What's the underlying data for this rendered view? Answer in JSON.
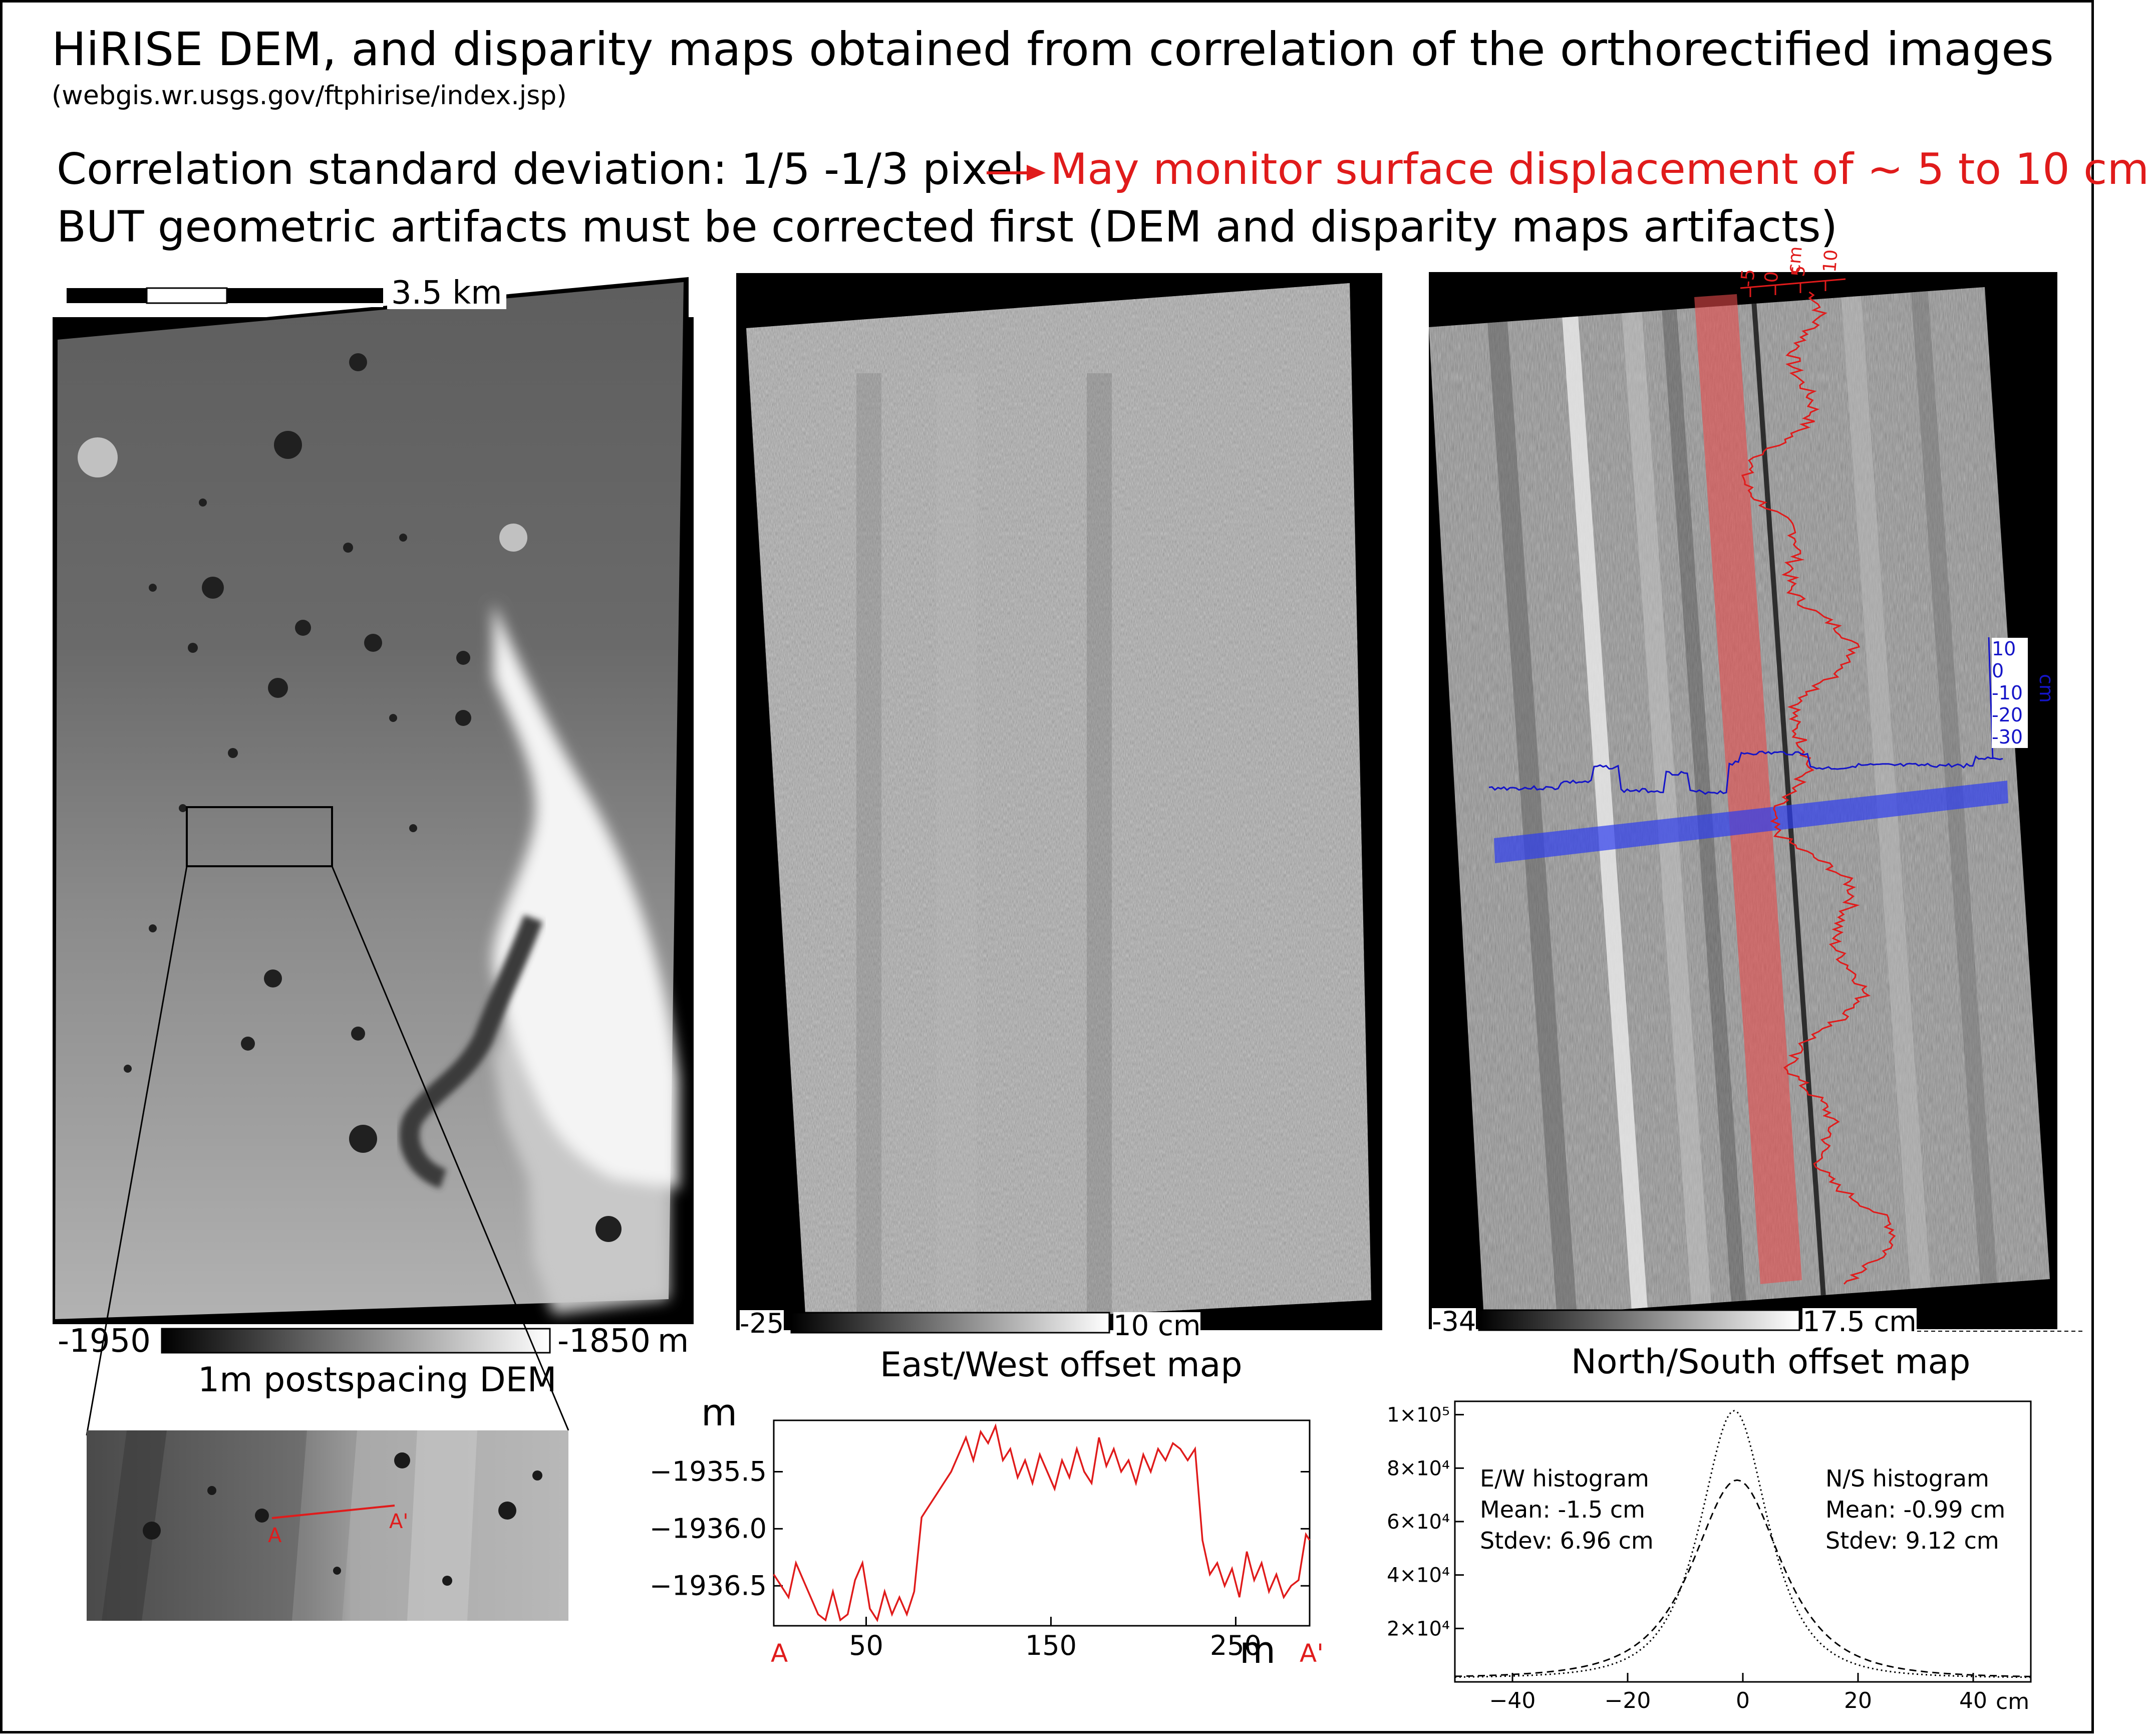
{
  "header": {
    "title": "HiRISE DEM, and disparity maps obtained from correlation of the orthorectified images",
    "source": "(webgis.wr.usgs.gov/ftphirise/index.jsp)",
    "line1_left": "Correlation standard deviation: 1/5 -1/3 pixel",
    "line1_right": "May monitor surface displacement of ~ 5 to 10 cm",
    "line2": "BUT geometric artifacts must be corrected first (DEM and disparity maps artifacts)"
  },
  "colors": {
    "accent": "#e01b1b",
    "blue": "#1515c8"
  },
  "dem": {
    "scalebar_label": "3.5 km",
    "cbar_min": "-1950",
    "cbar_max": "-1850",
    "cbar_unit": "m",
    "caption": "1m postspacing DEM"
  },
  "inset": {
    "label_a": "A",
    "label_b": "A'"
  },
  "ew": {
    "cbar_min": "-25",
    "cbar_max": "10 cm",
    "caption": "East/West offset map"
  },
  "ns": {
    "cbar_min": "-34",
    "cbar_max": "17.5 cm",
    "caption": "North/South offset map",
    "red_axis": {
      "unit": "cm",
      "ticks": [
        "-5",
        "0",
        "5",
        "10"
      ]
    },
    "blue_axis": {
      "unit": "cm",
      "ticks": [
        "10",
        "0",
        "-10",
        "-20",
        "-30"
      ]
    }
  },
  "chart_data": [
    {
      "type": "line",
      "title": "",
      "ylabel": "m",
      "xlabel": "m",
      "ylim": [
        -1936.85,
        -1935.05
      ],
      "xlim": [
        0,
        290
      ],
      "yticks": [
        "−1935.5",
        "−1936.0",
        "−1936.5"
      ],
      "ytick_values": [
        -1935.5,
        -1936.0,
        -1936.5
      ],
      "xticks": [
        "50",
        "150",
        "250"
      ],
      "xtick_values": [
        50,
        150,
        250
      ],
      "x_start_label": "A",
      "x_end_label": "A'",
      "series": [
        {
          "color": "#e01b1b",
          "x": [
            0,
            4,
            8,
            12,
            16,
            20,
            24,
            28,
            32,
            36,
            40,
            44,
            48,
            52,
            56,
            60,
            64,
            68,
            72,
            76,
            80,
            84,
            88,
            92,
            96,
            100,
            104,
            108,
            112,
            116,
            120,
            124,
            128,
            132,
            136,
            140,
            144,
            148,
            152,
            156,
            160,
            164,
            168,
            172,
            176,
            180,
            184,
            188,
            192,
            196,
            200,
            204,
            208,
            212,
            216,
            220,
            224,
            228,
            232,
            236,
            240,
            244,
            248,
            252,
            256,
            260,
            264,
            268,
            272,
            276,
            280,
            284,
            288,
            290
          ],
          "values": [
            -1936.4,
            -1936.5,
            -1936.6,
            -1936.3,
            -1936.45,
            -1936.6,
            -1936.75,
            -1936.8,
            -1936.55,
            -1936.8,
            -1936.75,
            -1936.45,
            -1936.3,
            -1936.7,
            -1936.8,
            -1936.55,
            -1936.75,
            -1936.6,
            -1936.75,
            -1936.55,
            -1935.9,
            -1935.8,
            -1935.7,
            -1935.6,
            -1935.5,
            -1935.35,
            -1935.2,
            -1935.4,
            -1935.15,
            -1935.25,
            -1935.1,
            -1935.4,
            -1935.3,
            -1935.55,
            -1935.4,
            -1935.6,
            -1935.35,
            -1935.5,
            -1935.65,
            -1935.4,
            -1935.55,
            -1935.3,
            -1935.5,
            -1935.6,
            -1935.2,
            -1935.45,
            -1935.3,
            -1935.5,
            -1935.4,
            -1935.6,
            -1935.35,
            -1935.5,
            -1935.3,
            -1935.4,
            -1935.25,
            -1935.3,
            -1935.4,
            -1935.3,
            -1936.1,
            -1936.4,
            -1936.3,
            -1936.5,
            -1936.35,
            -1936.6,
            -1936.2,
            -1936.45,
            -1936.3,
            -1936.55,
            -1936.4,
            -1936.6,
            -1936.5,
            -1936.45,
            -1936.05,
            -1936.1
          ]
        }
      ]
    },
    {
      "type": "line",
      "title": "",
      "xlabel": "cm",
      "ylabel": "",
      "xlim": [
        -50,
        50
      ],
      "ylim": [
        0,
        105000
      ],
      "xticks": [
        "−40",
        "−20",
        "0",
        "20",
        "40"
      ],
      "xtick_values": [
        -40,
        -20,
        0,
        20,
        40
      ],
      "ytick_labels": [
        "2×10⁴",
        "4×10⁴",
        "6×10⁴",
        "8×10⁴",
        "1×10⁵"
      ],
      "ytick_values": [
        20000,
        40000,
        60000,
        80000,
        100000
      ],
      "series": [
        {
          "name": "E/W histogram",
          "style": "dotted",
          "mean": -1.5,
          "stdev": 6.96,
          "peak": 100000
        },
        {
          "name": "N/S histogram",
          "style": "dashed",
          "mean": -0.99,
          "stdev": 9.12,
          "peak": 74000
        }
      ],
      "annotations": {
        "ew": {
          "title": "E/W histogram",
          "mean": "Mean: -1.5 cm",
          "stdev": "Stdev: 6.96 cm"
        },
        "ns": {
          "title": "N/S histogram",
          "mean": "Mean: -0.99 cm",
          "stdev": "Stdev: 9.12 cm"
        }
      }
    }
  ]
}
